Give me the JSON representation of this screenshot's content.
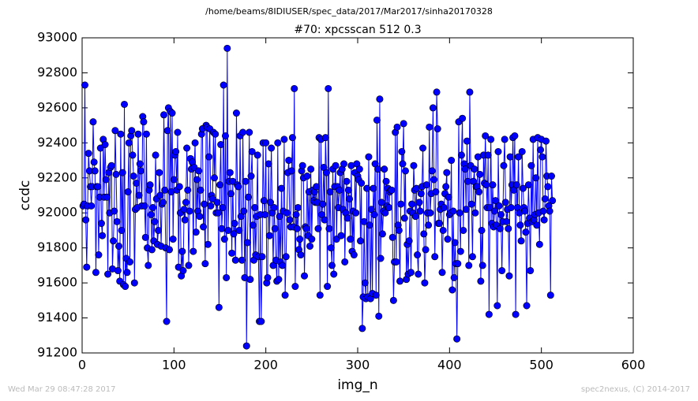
{
  "chart_data": {
    "type": "line",
    "suptitle": "/home/beams/8IDIUSER/spec_data/2017/Mar2017/sinha20170328",
    "title": "#70: xpcsscan 512 0.3",
    "x_label": "img_n",
    "y_label": "ccdc",
    "footer_left": "Wed Mar 29 08:47:28 2017",
    "footer_right": "spec2nexus, (C) 2014-2017",
    "xlim": [
      0,
      600
    ],
    "xticks": [
      0,
      100,
      200,
      300,
      400,
      500,
      600
    ],
    "ylim": [
      91200,
      93000
    ],
    "yticks": [
      91200,
      91400,
      91600,
      91800,
      92000,
      92200,
      92400,
      92600,
      92800,
      93000
    ],
    "grid": false,
    "x": [
      1,
      2,
      3,
      4,
      5,
      6,
      7,
      8,
      9,
      10,
      11,
      12,
      13,
      14,
      15,
      16,
      17,
      18,
      19,
      20,
      21,
      22,
      23,
      24,
      25,
      26,
      27,
      28,
      29,
      30,
      31,
      32,
      33,
      34,
      35,
      36,
      37,
      38,
      39,
      40,
      41,
      42,
      43,
      44,
      45,
      46,
      47,
      48,
      49,
      50,
      51,
      52,
      53,
      54,
      55,
      56,
      57,
      58,
      59,
      60,
      61,
      62,
      63,
      64,
      65,
      66,
      67,
      68,
      69,
      70,
      71,
      72,
      73,
      74,
      75,
      76,
      77,
      78,
      79,
      80,
      81,
      82,
      83,
      84,
      85,
      86,
      87,
      88,
      89,
      90,
      91,
      92,
      93,
      94,
      95,
      96,
      97,
      98,
      99,
      100,
      101,
      102,
      103,
      104,
      105,
      106,
      107,
      108,
      109,
      110,
      111,
      112,
      113,
      114,
      115,
      116,
      117,
      118,
      119,
      120,
      121,
      122,
      123,
      124,
      125,
      126,
      127,
      128,
      129,
      130,
      131,
      132,
      133,
      134,
      135,
      136,
      137,
      138,
      139,
      140,
      141,
      142,
      143,
      144,
      145,
      146,
      147,
      148,
      149,
      150,
      151,
      152,
      153,
      154,
      155,
      156,
      157,
      158,
      159,
      160,
      161,
      162,
      163,
      164,
      165,
      166,
      167,
      168,
      169,
      170,
      171,
      172,
      173,
      174,
      175,
      176,
      177,
      178,
      179,
      180,
      181,
      182,
      183,
      184,
      185,
      186,
      187,
      188,
      189,
      190,
      191,
      192,
      193,
      194,
      195,
      196,
      197,
      198,
      199,
      200,
      201,
      202,
      203,
      204,
      205,
      206,
      207,
      208,
      209,
      210,
      211,
      212,
      213,
      214,
      215,
      216,
      217,
      218,
      219,
      220,
      221,
      222,
      223,
      224,
      225,
      226,
      227,
      228,
      229,
      230,
      231,
      232,
      233,
      234,
      235,
      236,
      237,
      238,
      239,
      240,
      241,
      242,
      243,
      244,
      245,
      246,
      247,
      248,
      249,
      250,
      251,
      252,
      253,
      254,
      255,
      256,
      257,
      258,
      259,
      260,
      261,
      262,
      263,
      264,
      265,
      266,
      267,
      268,
      269,
      270,
      271,
      272,
      273,
      274,
      275,
      276,
      277,
      278,
      279,
      280,
      281,
      282,
      283,
      284,
      285,
      286,
      287,
      288,
      289,
      290,
      291,
      292,
      293,
      294,
      295,
      296,
      297,
      298,
      299,
      300,
      301,
      302,
      303,
      304,
      305,
      306,
      307,
      308,
      309,
      310,
      311,
      312,
      313,
      314,
      315,
      316,
      317,
      318,
      319,
      320,
      321,
      322,
      323,
      324,
      325,
      326,
      327,
      328,
      329,
      330,
      331,
      332,
      333,
      334,
      335,
      336,
      337,
      338,
      339,
      340,
      341,
      342,
      343,
      344,
      345,
      346,
      347,
      348,
      349,
      350,
      351,
      352,
      353,
      354,
      355,
      356,
      357,
      358,
      359,
      360,
      361,
      362,
      363,
      364,
      365,
      366,
      367,
      368,
      369,
      370,
      371,
      372,
      373,
      374,
      375,
      376,
      377,
      378,
      379,
      380,
      381,
      382,
      383,
      384,
      385,
      386,
      387,
      388,
      389,
      390,
      391,
      392,
      393,
      394,
      395,
      396,
      397,
      398,
      399,
      400,
      401,
      402,
      403,
      404,
      405,
      406,
      407,
      408,
      409,
      410,
      411,
      412,
      413,
      414,
      415,
      416,
      417,
      418,
      419,
      420,
      421,
      422,
      423,
      424,
      425,
      426,
      427,
      428,
      429,
      430,
      431,
      432,
      433,
      434,
      435,
      436,
      437,
      438,
      439,
      440,
      441,
      442,
      443,
      444,
      445,
      446,
      447,
      448,
      449,
      450,
      451,
      452,
      453,
      454,
      455,
      456,
      457,
      458,
      459,
      460,
      461,
      462,
      463,
      464,
      465,
      466,
      467,
      468,
      469,
      470,
      471,
      472,
      473,
      474,
      475,
      476,
      477,
      478,
      479,
      480,
      481,
      482,
      483,
      484,
      485,
      486,
      487,
      488,
      489,
      490,
      491,
      492,
      493,
      494,
      495,
      496,
      497,
      498,
      499,
      500,
      501,
      502,
      503,
      504,
      505,
      506,
      507,
      508,
      509,
      510,
      511,
      512
    ],
    "series": [
      {
        "color": "#0000ff",
        "values": [
          92040,
          92050,
          92730,
          91960,
          91690,
          92040,
          92340,
          92240,
          92150,
          92040,
          92150,
          92520,
          92290,
          92240,
          91660,
          92150,
          92150,
          91760,
          92090,
          92370,
          91940,
          91870,
          92420,
          92090,
          92390,
          92190,
          92090,
          91650,
          92230,
          92000,
          92260,
          92270,
          91680,
          91840,
          92010,
          92470,
          92220,
          91950,
          91670,
          91810,
          91610,
          92450,
          91900,
          92230,
          91590,
          92620,
          91580,
          91740,
          91660,
          92120,
          92400,
          91720,
          92440,
          92470,
          92330,
          92210,
          91600,
          92020,
          92170,
          92030,
          92450,
          92100,
          92280,
          92240,
          92040,
          92550,
          92520,
          92040,
          91860,
          92450,
          91800,
          91700,
          92130,
          92160,
          91990,
          91790,
          92030,
          91840,
          91950,
          92330,
          92080,
          91820,
          91900,
          92230,
          92100,
          91810,
          92050,
          92060,
          92560,
          92130,
          91800,
          91380,
          92470,
          92600,
          91790,
          92580,
          92120,
          92570,
          91850,
          92190,
          92330,
          92350,
          92130,
          92460,
          91690,
          92150,
          92000,
          91640,
          91780,
          91670,
          92020,
          91960,
          92060,
          92370,
          92130,
          91700,
          92010,
          92310,
          92250,
          92290,
          91780,
          92260,
          92400,
          91890,
          92190,
          92010,
          92240,
          91980,
          92130,
          92450,
          92480,
          91920,
          92050,
          91710,
          92500,
          92490,
          91820,
          92320,
          92480,
          92040,
          92100,
          92080,
          92460,
          92200,
          92450,
          92000,
          92060,
          92000,
          91460,
          92160,
          92390,
          91910,
          92030,
          92730,
          91850,
          92440,
          91630,
          92940,
          91900,
          92180,
          92230,
          92110,
          91770,
          92180,
          91880,
          91940,
          91730,
          92570,
          92160,
          92150,
          91900,
          92440,
          91980,
          91730,
          92460,
          92010,
          91630,
          92180,
          91240,
          91830,
          92090,
          92460,
          91620,
          92210,
          92350,
          91930,
          91730,
          92030,
          91760,
          91980,
          92330,
          91750,
          91380,
          91990,
          91380,
          91750,
          92400,
          92070,
          91990,
          92400,
          91600,
          91630,
          92280,
          91870,
          92060,
          92370,
          92000,
          91700,
          92030,
          91910,
          91730,
          91610,
          92400,
          91620,
          91980,
          91720,
          92140,
          91700,
          92010,
          92420,
          91530,
          91750,
          92000,
          92230,
          92300,
          91960,
          91920,
          92240,
          92430,
          91920,
          92710,
          91580,
          91990,
          91910,
          92030,
          91790,
          91850,
          91760,
          92240,
          92270,
          92200,
          91640,
          91920,
          91910,
          92210,
          91870,
          92120,
          91810,
          92250,
          91850,
          92130,
          92070,
          92120,
          92060,
          92150,
          92060,
          91910,
          92430,
          91530,
          92420,
          91990,
          92050,
          92260,
          91960,
          92430,
          92230,
          91580,
          92710,
          91910,
          92120,
          91800,
          91700,
          92250,
          91650,
          92150,
          92270,
          91850,
          92150,
          92030,
          92130,
          92230,
          91870,
          92250,
          92020,
          92280,
          91720,
          92000,
          92180,
          91970,
          92130,
          92080,
          91850,
          92270,
          91780,
          92010,
          91760,
          92230,
          92000,
          92280,
          92210,
          92190,
          92250,
          91840,
          92170,
          91340,
          91520,
          91950,
          91600,
          91510,
          92140,
          91520,
          92320,
          91930,
          91510,
          92020,
          91540,
          92140,
          91990,
          92280,
          91530,
          92530,
          92250,
          91410,
          92650,
          91740,
          92060,
          91880,
          92010,
          92250,
          92000,
          92180,
          92040,
          92140,
          92030,
          92120,
          92130,
          92130,
          91860,
          91500,
          91720,
          92460,
          91720,
          92490,
          91930,
          91900,
          91610,
          92050,
          92350,
          92280,
          92510,
          91970,
          92240,
          91620,
          91820,
          91650,
          91840,
          92010,
          91660,
          92050,
          92000,
          92270,
          92130,
          91980,
          92140,
          91760,
          91650,
          92060,
          92010,
          92110,
          92150,
          92370,
          91880,
          91600,
          91790,
          92160,
          92000,
          91930,
          92490,
          92000,
          92110,
          92240,
          92600,
          92190,
          91750,
          92120,
          92690,
          92480,
          91940,
          91940,
          92020,
          92050,
          91660,
          91900,
          92030,
          92110,
          92150,
          92230,
          91850,
          92090,
          91990,
          92000,
          92300,
          91560,
          92010,
          91630,
          91830,
          91710,
          91280,
          91710,
          92520,
          92000,
          91780,
          92330,
          92540,
          91900,
          92280,
          92250,
          92020,
          92410,
          92180,
          91700,
          92690,
          92270,
          92050,
          91750,
          92180,
          92250,
          92000,
          92150,
          92150,
          92320,
          92120,
          92220,
          91610,
          91900,
          91700,
          92330,
          92170,
          92440,
          92160,
          92030,
          92330,
          91420,
          92030,
          92420,
          91940,
          92160,
          91920,
          92010,
          92070,
          91930,
          91470,
          92350,
          92040,
          91910,
          91990,
          91670,
          91950,
          92270,
          92420,
          92060,
          91950,
          92020,
          91910,
          91640,
          92320,
          92030,
          92160,
          92430,
          92130,
          92440,
          91420,
          92160,
          92030,
          92320,
          92000,
          91930,
          91840,
          92350,
          92140,
          92030,
          92010,
          91890,
          91470,
          91940,
          92160,
          91970,
          91670,
          92270,
          91950,
          92420,
          91960,
          91990,
          92200,
          91930,
          92430,
          92000,
          91820,
          92360,
          92420,
          92320,
          92010,
          91960,
          92080,
          92410,
          92210,
          92150,
          92040,
          92010,
          91530,
          92210,
          92070
        ]
      }
    ]
  }
}
